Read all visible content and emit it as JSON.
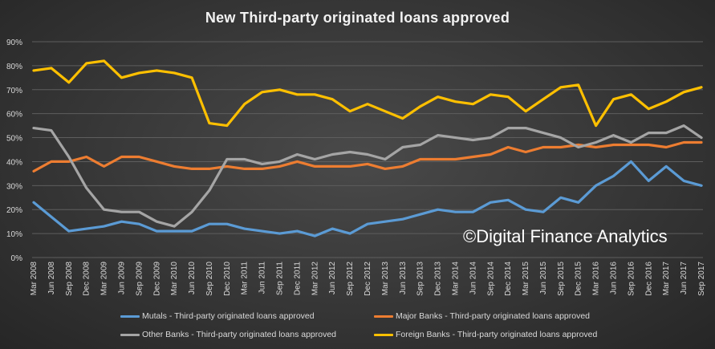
{
  "chart_data": {
    "type": "line",
    "title": "New Third-party originated loans approved",
    "watermark": "©Digital Finance Analytics",
    "ylim": [
      0,
      90
    ],
    "yticks": [
      "0%",
      "10%",
      "20%",
      "30%",
      "40%",
      "50%",
      "60%",
      "70%",
      "80%",
      "90%"
    ],
    "grid": true,
    "legend_position": "bottom",
    "categories": [
      "Mar 2008",
      "Jun 2008",
      "Sep 2008",
      "Dec 2008",
      "Mar 2009",
      "Jun 2009",
      "Sep 2009",
      "Dec 2009",
      "Mar 2010",
      "Jun 2010",
      "Sep 2010",
      "Dec 2010",
      "Mar 2011",
      "Jun 2011",
      "Sep 2011",
      "Dec 2011",
      "Mar 2012",
      "Jun 2012",
      "Sep 2012",
      "Dec 2012",
      "Mar 2013",
      "Jun 2013",
      "Sep 2013",
      "Dec 2013",
      "Mar 2014",
      "Jun 2014",
      "Sep 2014",
      "Dec 2014",
      "Mar 2015",
      "Jun 2015",
      "Sep 2015",
      "Dec 2015",
      "Mar 2016",
      "Jun 2016",
      "Sep 2016",
      "Dec 2016",
      "Mar 2017",
      "Jun 2017",
      "Sep 2017"
    ],
    "series": [
      {
        "name": "Mutals - Third-party originated loans approved",
        "color": "#5b9bd5",
        "values": [
          23,
          17,
          11,
          12,
          13,
          15,
          14,
          11,
          11,
          11,
          14,
          14,
          12,
          11,
          10,
          11,
          9,
          12,
          10,
          14,
          15,
          16,
          18,
          20,
          19,
          19,
          23,
          24,
          20,
          19,
          25,
          23,
          30,
          34,
          40,
          32,
          38,
          32,
          30
        ]
      },
      {
        "name": "Major Banks - Third-party originated loans approved",
        "color": "#ed7d31",
        "values": [
          36,
          40,
          40,
          42,
          38,
          42,
          42,
          40,
          38,
          37,
          37,
          38,
          37,
          37,
          38,
          40,
          38,
          38,
          38,
          39,
          37,
          38,
          41,
          41,
          41,
          42,
          43,
          46,
          44,
          46,
          46,
          47,
          46,
          47,
          47,
          47,
          46,
          48,
          48
        ]
      },
      {
        "name": "Other Banks - Third-party originated loans approved",
        "color": "#a5a5a5",
        "values": [
          54,
          53,
          42,
          29,
          20,
          19,
          19,
          15,
          13,
          19,
          28,
          41,
          41,
          39,
          40,
          43,
          41,
          43,
          44,
          43,
          41,
          46,
          47,
          51,
          50,
          49,
          50,
          54,
          54,
          52,
          50,
          46,
          48,
          51,
          48,
          52,
          52,
          55,
          50
        ]
      },
      {
        "name": "Foreign Banks - Third-party originated loans approved",
        "color": "#ffc000",
        "values": [
          78,
          79,
          73,
          81,
          82,
          75,
          77,
          78,
          77,
          75,
          56,
          55,
          64,
          69,
          70,
          68,
          68,
          66,
          61,
          64,
          61,
          58,
          63,
          67,
          65,
          64,
          68,
          67,
          61,
          66,
          71,
          72,
          55,
          66,
          68,
          62,
          65,
          69,
          71
        ]
      }
    ]
  }
}
